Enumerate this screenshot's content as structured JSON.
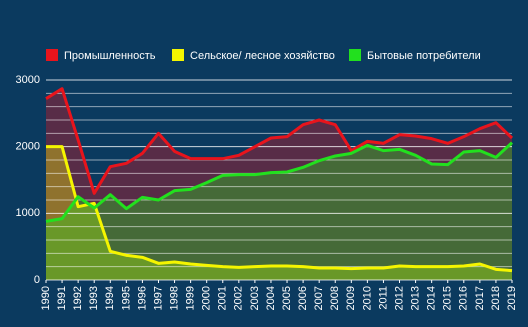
{
  "chart_data": {
    "type": "area",
    "x": [
      1990,
      1991,
      1992,
      1993,
      1994,
      1995,
      1996,
      1997,
      1998,
      1999,
      2000,
      2001,
      2002,
      2003,
      2004,
      2005,
      2006,
      2007,
      2008,
      2009,
      2010,
      2011,
      2012,
      2013,
      2014,
      2015,
      2016,
      2017,
      2018,
      2019
    ],
    "series": [
      {
        "name": "Промышленность",
        "color": "#e8141c",
        "values": [
          2720,
          2870,
          2100,
          1300,
          1700,
          1750,
          1900,
          2200,
          1930,
          1820,
          1820,
          1820,
          1870,
          2000,
          2130,
          2150,
          2330,
          2400,
          2330,
          1940,
          2080,
          2050,
          2180,
          2160,
          2120,
          2050,
          2150,
          2270,
          2360,
          2130
        ]
      },
      {
        "name": "Сельское/ лесное хозяйство",
        "color": "#f5f500",
        "values": [
          2000,
          2000,
          1100,
          1150,
          430,
          370,
          340,
          250,
          270,
          240,
          220,
          200,
          190,
          200,
          210,
          210,
          200,
          180,
          180,
          170,
          180,
          180,
          210,
          200,
          200,
          200,
          210,
          240,
          160,
          140
        ]
      },
      {
        "name": "Бытовые потребители",
        "color": "#22e01e",
        "values": [
          880,
          920,
          1250,
          1080,
          1280,
          1070,
          1240,
          1200,
          1340,
          1360,
          1460,
          1570,
          1580,
          1580,
          1610,
          1620,
          1690,
          1790,
          1860,
          1900,
          2020,
          1940,
          1960,
          1870,
          1740,
          1730,
          1920,
          1940,
          1840,
          2060
        ]
      }
    ],
    "xlim": [
      1990,
      2019
    ],
    "xticks": [
      1990,
      1991,
      1992,
      1993,
      1994,
      1995,
      1996,
      1997,
      1998,
      1999,
      2000,
      2001,
      2002,
      2003,
      2004,
      2005,
      2006,
      2007,
      2008,
      2009,
      2010,
      2011,
      2012,
      2013,
      2014,
      2015,
      2016,
      2017,
      2018,
      2019
    ],
    "ylim": [
      0,
      3000
    ],
    "yticks": [
      0,
      1000,
      2000,
      3000
    ],
    "minor_yticks": [
      200,
      400,
      600,
      800,
      1200,
      1400,
      1600,
      1800,
      2200,
      2400,
      2600,
      2800
    ],
    "grid": true,
    "legend": "top"
  }
}
